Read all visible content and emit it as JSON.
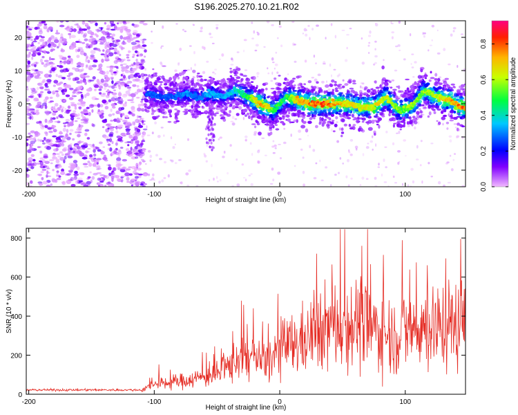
{
  "title": "S196.2025.270.10.21.R02",
  "colorbar": {
    "label": "Normalized spectral amplitude",
    "ticks": [
      "0.0",
      "0.2",
      "0.4",
      "0.6",
      "0.8"
    ],
    "tick_values": [
      0.0,
      0.2,
      0.4,
      0.6,
      0.8
    ],
    "range": [
      0,
      0.93
    ]
  },
  "chart_data": [
    {
      "type": "heatmap",
      "name": "spectrogram",
      "xlabel": "Height of straight line (km)",
      "ylabel": "Frequency (Hz)",
      "xlim": [
        -202,
        148
      ],
      "ylim": [
        -25,
        25
      ],
      "x_ticks": [
        -200,
        -100,
        0,
        100
      ],
      "x_tick_labels": [
        "-200",
        "-100",
        "0",
        "100"
      ],
      "y_ticks": [
        -20,
        -10,
        0,
        10,
        20
      ],
      "y_tick_labels": [
        "-20",
        "-10",
        "0",
        "10",
        "20"
      ],
      "ridge": {
        "x": [
          -105,
          -95,
          -85,
          -75,
          -65,
          -55,
          -45,
          -35,
          -25,
          -15,
          -5,
          5,
          15,
          25,
          35,
          45,
          55,
          65,
          75,
          85,
          95,
          105,
          115,
          125,
          135,
          145
        ],
        "y": [
          3,
          2,
          2,
          3,
          2,
          3,
          2,
          4,
          2,
          0,
          -2,
          2,
          1,
          0,
          0,
          0,
          0,
          -1,
          -1,
          2,
          -2,
          -1,
          4,
          2,
          1,
          -1
        ],
        "amplitude": [
          0.3,
          0.3,
          0.3,
          0.35,
          0.3,
          0.4,
          0.35,
          0.45,
          0.55,
          0.85,
          0.6,
          0.55,
          0.8,
          0.85,
          0.9,
          0.8,
          0.75,
          0.7,
          0.75,
          0.7,
          0.6,
          0.65,
          0.65,
          0.7,
          0.8,
          0.85
        ]
      },
      "noise_region": [
        -202,
        -107
      ]
    },
    {
      "type": "line",
      "name": "snr",
      "xlabel": "Height of straight line (km)",
      "ylabel": "SNR (10 * v/v)",
      "xlim": [
        -202,
        148
      ],
      "ylim": [
        0,
        850
      ],
      "x_ticks": [
        -200,
        -100,
        0,
        100
      ],
      "x_tick_labels": [
        "-200",
        "-100",
        "0",
        "100"
      ],
      "y_ticks": [
        0,
        200,
        400,
        600,
        800
      ],
      "y_tick_labels": [
        "0",
        "200",
        "400",
        "600",
        "800"
      ],
      "color": "#e52a22",
      "envelope": {
        "x": [
          -202,
          -110,
          -100,
          -80,
          -60,
          -45,
          -40,
          -30,
          -20,
          -10,
          0,
          10,
          20,
          30,
          40,
          50,
          60,
          70,
          80,
          90,
          100,
          110,
          120,
          130,
          140,
          148
        ],
        "y": [
          22,
          22,
          50,
          65,
          90,
          110,
          150,
          200,
          180,
          160,
          230,
          250,
          280,
          320,
          350,
          360,
          370,
          340,
          330,
          300,
          320,
          350,
          340,
          350,
          360,
          370
        ]
      }
    }
  ]
}
